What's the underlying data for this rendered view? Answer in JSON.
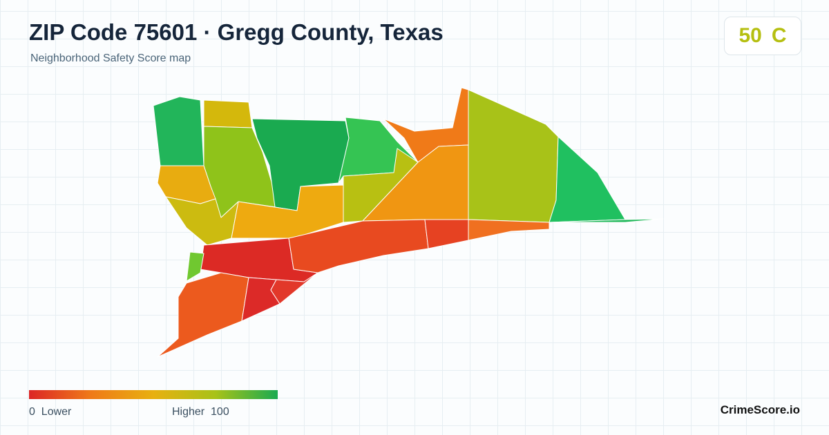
{
  "header": {
    "title": "ZIP Code 75601 · Gregg County, Texas",
    "subtitle": "Neighborhood Safety Score map"
  },
  "score": {
    "value": 50,
    "grade": "C"
  },
  "legend": {
    "min": 0,
    "min_label": "Lower",
    "max_label": "Higher",
    "max": 100
  },
  "footer": {
    "brand": "CrimeScore.io"
  }
}
